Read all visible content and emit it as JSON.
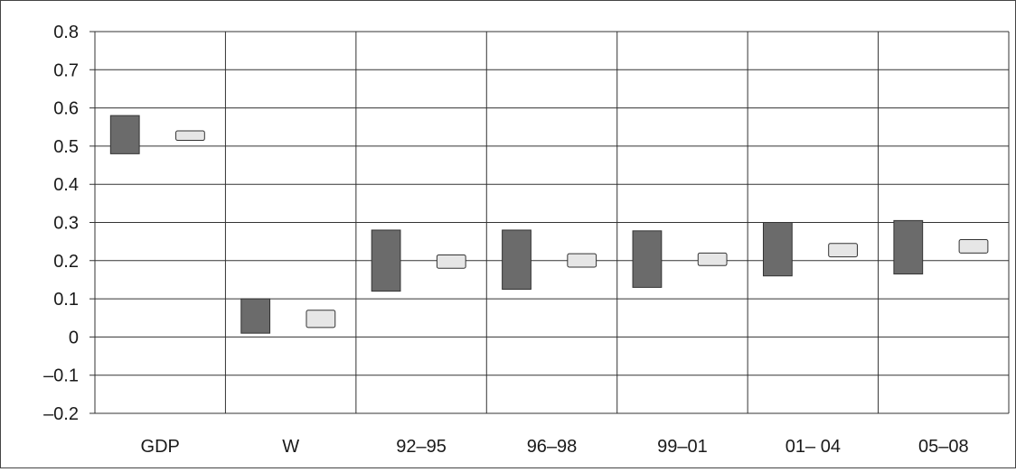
{
  "chart_data": {
    "type": "bar",
    "subtype": "floating-range",
    "categories": [
      "GDP",
      "W",
      "92–95",
      "96–98",
      "99–01",
      "01– 04",
      "05–08"
    ],
    "series": [
      {
        "color": "#6b6b6b",
        "ranges": [
          [
            0.48,
            0.58
          ],
          [
            0.01,
            0.1
          ],
          [
            0.12,
            0.28
          ],
          [
            0.125,
            0.28
          ],
          [
            0.13,
            0.278
          ],
          [
            0.16,
            0.3
          ],
          [
            0.165,
            0.305
          ]
        ]
      },
      {
        "color": "#e6e6e6",
        "ranges": [
          [
            0.515,
            0.54
          ],
          [
            0.025,
            0.07
          ],
          [
            0.18,
            0.215
          ],
          [
            0.183,
            0.218
          ],
          [
            0.187,
            0.22
          ],
          [
            0.21,
            0.245
          ],
          [
            0.22,
            0.255
          ]
        ]
      }
    ],
    "y_ticks": [
      "0.8",
      "0.7",
      "0.6",
      "0.5",
      "0.4",
      "0.3",
      "0.2",
      "0.1",
      "0",
      "–0.1",
      "–0.2"
    ],
    "ylim": [
      -0.2,
      0.8
    ],
    "y_step": 0.1,
    "grid": true,
    "legend": "none",
    "title": "",
    "xlabel": "",
    "ylabel": ""
  }
}
